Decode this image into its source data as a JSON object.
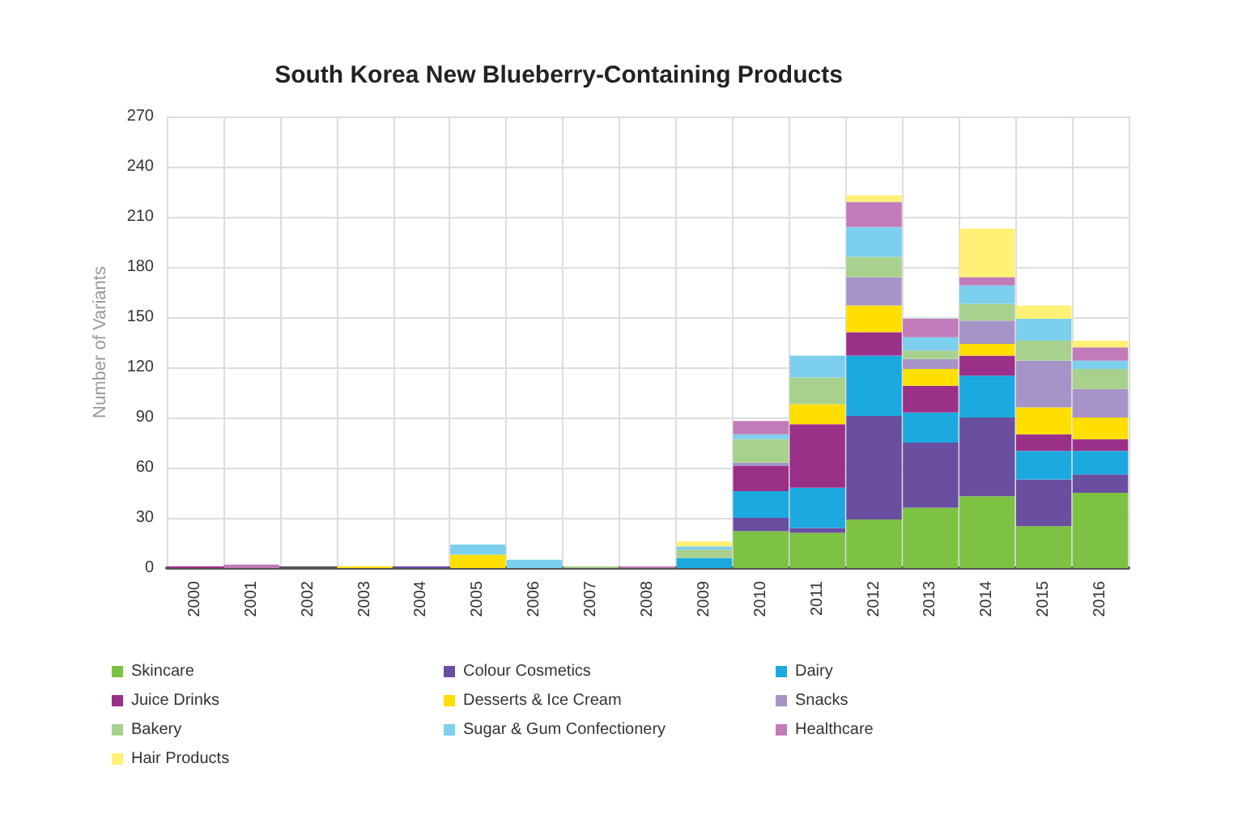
{
  "chart_data": {
    "type": "bar",
    "title": "South Korea New Blueberry-Containing Products",
    "ylabel": "Number of Variants",
    "categories": [
      "2000",
      "2001",
      "2002",
      "2003",
      "2004",
      "2005",
      "2006",
      "2007",
      "2008",
      "2009",
      "2010",
      "2011",
      "2012",
      "2013",
      "2014",
      "2015",
      "2016"
    ],
    "stacked": true,
    "ylim": [
      0,
      270
    ],
    "yticks": [
      0,
      30,
      60,
      90,
      120,
      150,
      180,
      210,
      240,
      270
    ],
    "grid": true,
    "legend": "bottom",
    "series": [
      {
        "name": "Skincare",
        "color": "#7dc242",
        "values": [
          0,
          0,
          0,
          0,
          0,
          0,
          0,
          0,
          0,
          0,
          22,
          21,
          29,
          36,
          43,
          25,
          45
        ]
      },
      {
        "name": "Colour Cosmetics",
        "color": "#6a4ea0",
        "values": [
          0,
          0,
          0,
          0,
          1,
          0,
          0,
          0,
          0,
          0,
          8,
          3,
          62,
          39,
          47,
          28,
          11
        ]
      },
      {
        "name": "Dairy",
        "color": "#1ba9e0",
        "values": [
          0,
          0,
          0,
          0,
          0,
          0,
          0,
          0,
          0,
          6,
          16,
          24,
          36,
          18,
          25,
          17,
          14
        ]
      },
      {
        "name": "Juice Drinks",
        "color": "#9b3088",
        "values": [
          1,
          0,
          0,
          0,
          0,
          0,
          0,
          0,
          0,
          0,
          15,
          38,
          14,
          16,
          12,
          10,
          7
        ]
      },
      {
        "name": "Desserts & Ice Cream",
        "color": "#ffdf00",
        "values": [
          0,
          0,
          0,
          1,
          0,
          8,
          0,
          0,
          0,
          0,
          0,
          12,
          16,
          10,
          7,
          16,
          13
        ]
      },
      {
        "name": "Snacks",
        "color": "#a694c8",
        "values": [
          0,
          0,
          0,
          0,
          0,
          0,
          0,
          0,
          0,
          0,
          2,
          0,
          17,
          6,
          14,
          28,
          17
        ]
      },
      {
        "name": "Bakery",
        "color": "#a9d18e",
        "values": [
          0,
          0,
          0,
          0,
          0,
          0,
          0,
          1,
          0,
          5,
          14,
          16,
          12,
          5,
          10,
          12,
          12
        ]
      },
      {
        "name": "Sugar & Gum Confectionery",
        "color": "#7dcfee",
        "values": [
          0,
          0,
          0,
          0,
          0,
          6,
          5,
          0,
          0,
          2,
          3,
          13,
          18,
          8,
          11,
          13,
          5
        ]
      },
      {
        "name": "Healthcare",
        "color": "#c17bb8",
        "values": [
          0,
          2,
          0,
          0,
          0,
          0,
          0,
          0,
          1,
          0,
          8,
          0,
          15,
          11,
          5,
          0,
          8
        ]
      },
      {
        "name": "Hair Products",
        "color": "#fff176",
        "values": [
          0,
          0,
          0,
          0,
          0,
          0,
          0,
          0,
          0,
          3,
          0,
          0,
          4,
          0,
          29,
          8,
          4
        ]
      }
    ]
  }
}
